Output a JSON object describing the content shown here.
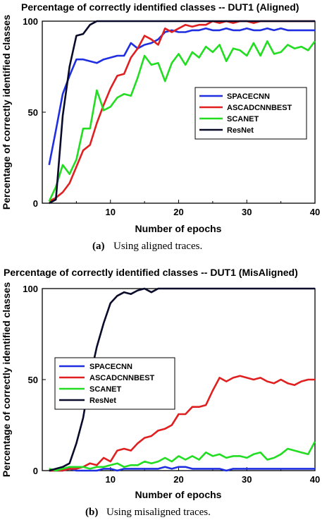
{
  "chart_data": [
    {
      "type": "line",
      "title": "Percentage of correctly identified classes -- DUT1 (Aligned)",
      "xlabel": "Number of epochs",
      "ylabel": "Percentage of correctly identified classes",
      "xlim": [
        0,
        40
      ],
      "ylim": [
        0,
        100
      ],
      "xticks": [
        0,
        10,
        20,
        30,
        40
      ],
      "yticks": [
        0,
        50,
        100
      ],
      "grid": false,
      "legend": "center-right",
      "x": [
        1,
        2,
        3,
        4,
        5,
        6,
        7,
        8,
        9,
        10,
        11,
        12,
        13,
        14,
        15,
        16,
        17,
        18,
        19,
        20,
        21,
        22,
        23,
        24,
        25,
        26,
        27,
        28,
        29,
        30,
        31,
        32,
        33,
        34,
        35,
        36,
        37,
        38,
        39,
        40
      ],
      "series": [
        {
          "name": "SPACECNN",
          "color": "#1f2ee0",
          "values": [
            21,
            40,
            60,
            70,
            79,
            79,
            78,
            77,
            79,
            80,
            81,
            81,
            88,
            85,
            87,
            88,
            90,
            94,
            95,
            94,
            94,
            95,
            95,
            96,
            95,
            95,
            96,
            95,
            95,
            96,
            95,
            95,
            96,
            95,
            96,
            95,
            95,
            95,
            95,
            95
          ]
        },
        {
          "name": "ASCADCNNBEST",
          "color": "#e02020",
          "values": [
            1,
            3,
            6,
            11,
            20,
            29,
            32,
            44,
            54,
            63,
            70,
            71,
            80,
            85,
            92,
            90,
            87,
            96,
            94,
            96,
            98,
            97,
            98,
            98,
            100,
            99,
            100,
            99,
            100,
            100,
            99,
            100,
            100,
            100,
            100,
            100,
            100,
            100,
            100,
            100
          ]
        },
        {
          "name": "SCANET",
          "color": "#22dd22",
          "values": [
            1,
            9,
            21,
            16,
            24,
            41,
            41,
            62,
            51,
            53,
            58,
            60,
            59,
            69,
            81,
            76,
            77,
            67,
            77,
            82,
            76,
            83,
            80,
            86,
            83,
            87,
            78,
            85,
            84,
            81,
            88,
            81,
            89,
            82,
            83,
            87,
            85,
            86,
            84,
            89
          ]
        },
        {
          "name": "ResNet",
          "color": "#0a0a2a",
          "values": [
            0,
            2,
            48,
            75,
            92,
            93,
            98,
            100,
            100,
            100,
            100,
            100,
            100,
            100,
            100,
            100,
            100,
            100,
            100,
            100,
            100,
            100,
            100,
            100,
            100,
            100,
            100,
            100,
            100,
            100,
            100,
            100,
            100,
            100,
            100,
            100,
            100,
            100,
            100,
            100
          ]
        }
      ],
      "caption_label": "(a)",
      "caption_text": "Using aligned traces."
    },
    {
      "type": "line",
      "title": "Percentage of correctly identified classes -- DUT1 (MisAligned)",
      "xlabel": "Number of epochs",
      "ylabel": "Percentage of correctly identified classes",
      "xlim": [
        0,
        40
      ],
      "ylim": [
        0,
        100
      ],
      "xticks": [
        0,
        10,
        20,
        30,
        40
      ],
      "yticks": [
        0,
        50,
        100
      ],
      "grid": false,
      "legend": "center-left",
      "x": [
        1,
        2,
        3,
        4,
        5,
        6,
        7,
        8,
        9,
        10,
        11,
        12,
        13,
        14,
        15,
        16,
        17,
        18,
        19,
        20,
        21,
        22,
        23,
        24,
        25,
        26,
        27,
        28,
        29,
        30,
        31,
        32,
        33,
        34,
        35,
        36,
        37,
        38,
        39,
        40
      ],
      "series": [
        {
          "name": "SPACECNN",
          "color": "#1f2ee0",
          "values": [
            0,
            0,
            0,
            1,
            0,
            0,
            0,
            0,
            1,
            1,
            0,
            1,
            1,
            1,
            1,
            1,
            1,
            2,
            1,
            2,
            2,
            1,
            1,
            1,
            1,
            1,
            0,
            1,
            1,
            1,
            1,
            1,
            1,
            1,
            1,
            1,
            1,
            1,
            1,
            1
          ]
        },
        {
          "name": "ASCADCNNBEST",
          "color": "#e02020",
          "values": [
            0,
            0,
            0,
            1,
            1,
            2,
            4,
            3,
            7,
            5,
            11,
            12,
            11,
            15,
            18,
            19,
            22,
            23,
            25,
            31,
            31,
            35,
            35,
            36,
            44,
            51,
            49,
            51,
            52,
            51,
            50,
            51,
            49,
            48,
            50,
            48,
            47,
            49,
            50,
            50
          ]
        },
        {
          "name": "SCANET",
          "color": "#22dd22",
          "values": [
            1,
            0,
            1,
            2,
            2,
            2,
            1,
            2,
            2,
            3,
            4,
            2,
            3,
            3,
            5,
            4,
            5,
            7,
            5,
            8,
            6,
            8,
            6,
            10,
            8,
            9,
            7,
            8,
            8,
            7,
            9,
            10,
            6,
            7,
            9,
            12,
            11,
            10,
            9,
            16
          ]
        },
        {
          "name": "ResNet",
          "color": "#0a0a2a",
          "values": [
            0,
            1,
            2,
            4,
            15,
            29,
            51,
            68,
            81,
            92,
            96,
            98,
            97,
            99,
            100,
            98,
            100,
            100,
            100,
            100,
            100,
            100,
            100,
            100,
            100,
            100,
            100,
            100,
            100,
            100,
            100,
            100,
            100,
            100,
            100,
            100,
            100,
            100,
            100,
            100
          ]
        }
      ],
      "caption_label": "(b)",
      "caption_text": "Using misaligned traces."
    }
  ]
}
